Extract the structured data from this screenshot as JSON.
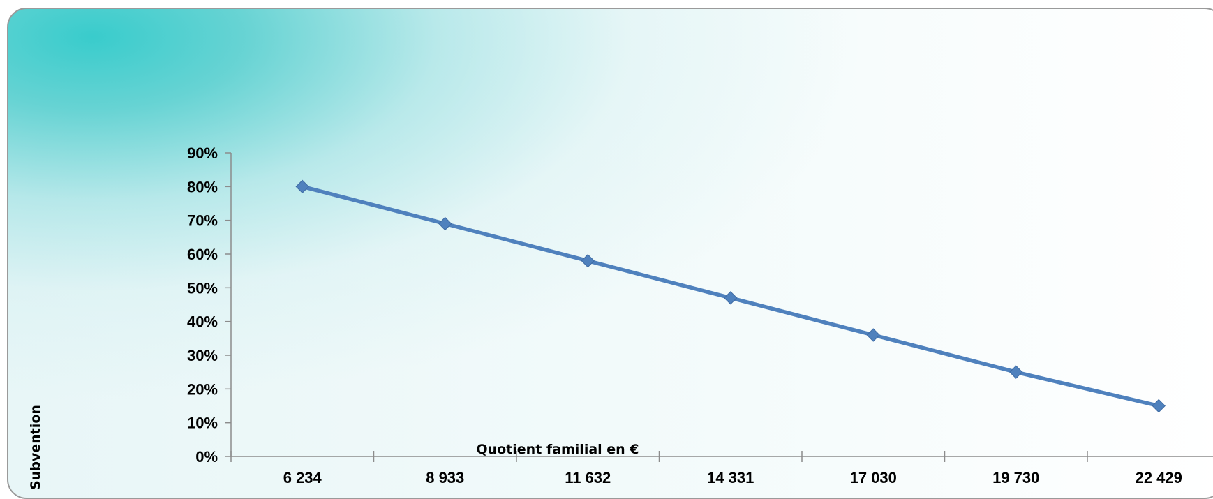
{
  "colors": {
    "series": "#4f81bd",
    "axis": "#8c8c8c"
  },
  "chart_data": {
    "type": "line",
    "title": "",
    "xlabel": "Quotient familial en €",
    "ylabel": "Subvention",
    "categories": [
      "6 234",
      "8 933",
      "11 632",
      "14 331",
      "17 030",
      "19 730",
      "22 429"
    ],
    "series": [
      {
        "values": [
          0.8,
          0.69,
          0.58,
          0.47,
          0.36,
          0.25,
          0.15
        ],
        "marker": "diamond"
      }
    ],
    "ylim": [
      0,
      0.9
    ],
    "yticks": [
      "0%",
      "10%",
      "20%",
      "30%",
      "40%",
      "50%",
      "60%",
      "70%",
      "80%",
      "90%"
    ],
    "grid": false,
    "legend": "none"
  }
}
